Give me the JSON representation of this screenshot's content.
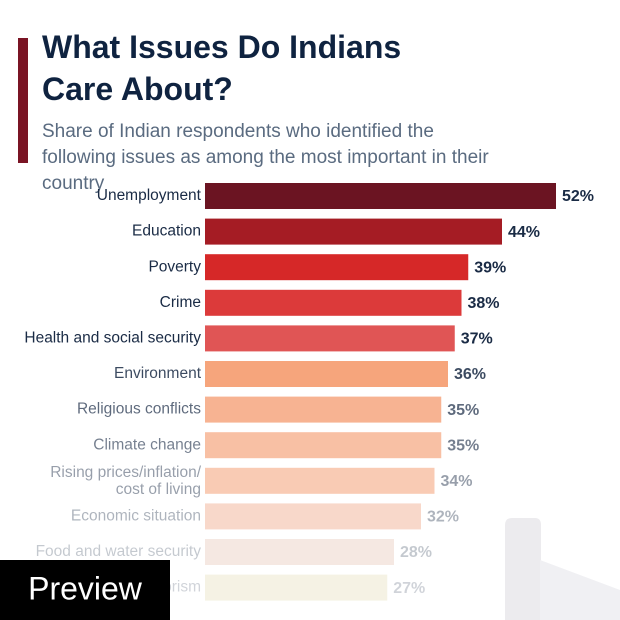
{
  "chart_data": {
    "type": "bar",
    "orientation": "horizontal",
    "title": "What Issues Do Indians Care About?",
    "subtitle": "Share of Indian respondents who identified the following issues as among the most important in their country",
    "categories": [
      "Unemployment",
      "Education",
      "Poverty",
      "Crime",
      "Health and social security",
      "Environment",
      "Religious conflicts",
      "Climate change",
      "Rising prices/inflation/ cost of living",
      "Economic situation",
      "Food and water security",
      "Terrorism"
    ],
    "values": [
      52,
      44,
      39,
      38,
      37,
      36,
      35,
      35,
      34,
      32,
      28,
      27
    ],
    "value_labels": [
      "52%",
      "44%",
      "39%",
      "38%",
      "37%",
      "36%",
      "35%",
      "35%",
      "34%",
      "32%",
      "28%",
      "27%"
    ],
    "colors": [
      "#6b1422",
      "#a51c24",
      "#d62828",
      "#dc3a3a",
      "#e05555",
      "#f6a57c",
      "#f7b392",
      "#f8c0a4",
      "#f9cbb4",
      "#f8d8ca",
      "#f5e8e2",
      "#f5f2e4"
    ]
  },
  "preview_badge": "Preview"
}
